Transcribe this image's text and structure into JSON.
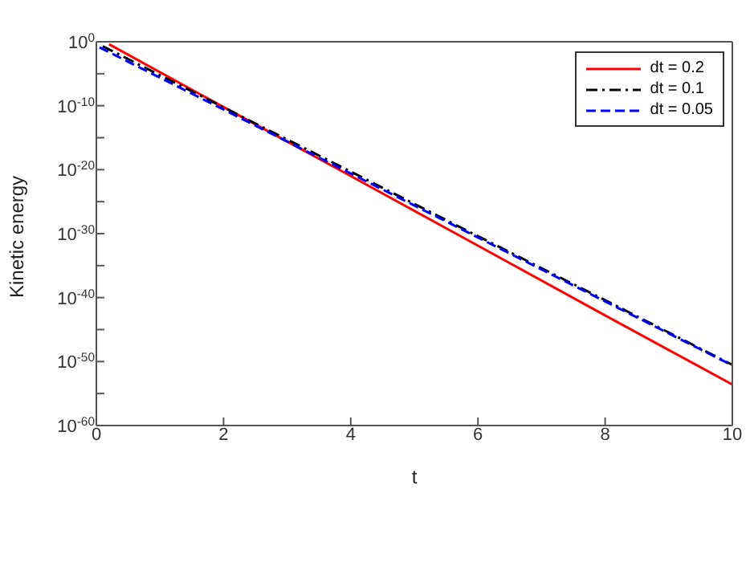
{
  "chart_data": {
    "type": "line",
    "xlabel": "t",
    "ylabel": "Kinetic energy",
    "log": "y",
    "legend": "top right",
    "xlim": [
      0,
      10
    ],
    "xticks": [
      0,
      2,
      4,
      6,
      8,
      10
    ],
    "ylim": [
      1e-60,
      1
    ],
    "yticks": [
      {
        "value": 1e-60,
        "label": "10$^{-60}$"
      },
      {
        "value": 1e-55,
        "label": null
      },
      {
        "value": 1e-50,
        "label": "10$^{-50}$"
      },
      {
        "value": 1e-45,
        "label": null
      },
      {
        "value": 1e-40,
        "label": "10$^{-40}$"
      },
      {
        "value": 1e-35,
        "label": null
      },
      {
        "value": 1e-30,
        "label": "10$^{-30}$"
      },
      {
        "value": 1e-25,
        "label": null
      },
      {
        "value": 1e-20,
        "label": "10$^{-20}$"
      },
      {
        "value": 1e-15,
        "label": null
      },
      {
        "value": 1e-10,
        "label": "10$^{-10}$"
      },
      {
        "value": 1e-05,
        "label": null
      },
      {
        "value": 1,
        "label": "10$^{0}$"
      }
    ],
    "series": [
      {
        "name": "dt = 0.2",
        "color": "#ff0000",
        "line_style": "solid",
        "x": [
          0.2,
          2,
          4,
          6,
          8,
          10
        ],
        "values": [
          0.4,
          6e-11,
          1e-21,
          1.3e-32,
          1.6e-43,
          2.5e-54
        ]
      },
      {
        "name": "dt = 0.1",
        "color": "#000000",
        "line_style": "dashdot",
        "x": [
          0.1,
          2,
          4,
          6,
          8,
          10
        ],
        "values": [
          0.2,
          5.5e-11,
          5e-21,
          4e-31,
          4e-41,
          3e-51
        ]
      },
      {
        "name": "dt = 0.05",
        "color": "#0000ff",
        "line_style": "dashed",
        "x": [
          0.05,
          2,
          4,
          6,
          8,
          10
        ],
        "values": [
          0.13,
          2.5e-11,
          2.5e-21,
          2.5e-31,
          2.5e-41,
          2.5e-51
        ]
      }
    ]
  }
}
